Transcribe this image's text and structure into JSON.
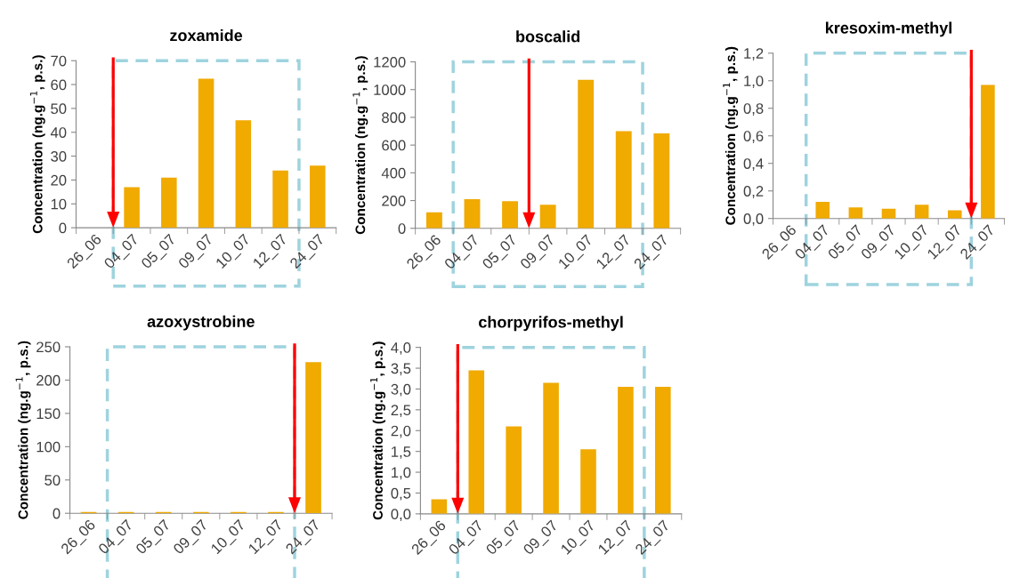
{
  "chart_data": [
    {
      "type": "bar",
      "title": "zoxamide",
      "ylabel": "Concentration (ng.g$^{−1}$, p.s.)",
      "categories": [
        "26_06",
        "04_07",
        "05_07",
        "09_07",
        "10_07",
        "12_07",
        "24_07"
      ],
      "values": [
        null,
        17,
        21,
        62.5,
        45,
        24,
        26
      ],
      "color": "#f0aa00",
      "ylim": [
        0,
        70
      ],
      "yticks": [
        0,
        10,
        20,
        30,
        40,
        50,
        60,
        70
      ],
      "grid": false
    },
    {
      "type": "bar",
      "title": "boscalid",
      "ylabel": "Concentration (ng.g$^{−1}$, p.s.)",
      "categories": [
        "26_06",
        "04_07",
        "05_07",
        "09_07",
        "10_07",
        "12_07",
        "24_07"
      ],
      "values": [
        115,
        210,
        195,
        170,
        1070,
        700,
        685
      ],
      "color": "#f0aa00",
      "ylim": [
        0,
        1200
      ],
      "yticks": [
        0,
        200,
        400,
        600,
        800,
        1000,
        1200
      ],
      "grid": false
    },
    {
      "type": "bar",
      "title": "kresoxim-methyl",
      "ylabel": "Concentration (ng.g$^{−1}$, p.s.)",
      "categories": [
        "26_06",
        "04_07",
        "05_07",
        "09_07",
        "10_07",
        "12_07",
        "24_07"
      ],
      "values": [
        null,
        0.12,
        0.08,
        0.07,
        0.1,
        0.06,
        0.97
      ],
      "color": "#f0aa00",
      "ylim": [
        0,
        1.2
      ],
      "yticks": [
        {
          "value": 0,
          "label": "0,0"
        },
        {
          "value": 0.2,
          "label": "0,2"
        },
        {
          "value": 0.4,
          "label": "0,4"
        },
        {
          "value": 0.6,
          "label": "0,6"
        },
        {
          "value": 0.8,
          "label": "0,8"
        },
        {
          "value": 1.0,
          "label": "1,0"
        },
        {
          "value": 1.2,
          "label": "1,2"
        }
      ],
      "grid": false
    },
    {
      "type": "bar",
      "title": "azoxystrobine",
      "ylabel": "Concentration (ng.g$^{−1}$, p.s.)",
      "categories": [
        "26_06",
        "04_07",
        "05_07",
        "09_07",
        "10_07",
        "12_07",
        "24_07"
      ],
      "values": [
        2,
        2,
        2,
        2,
        2,
        2,
        227
      ],
      "color": "#f0aa00",
      "ylim": [
        0,
        250
      ],
      "yticks": [
        0,
        50,
        100,
        150,
        200,
        250
      ],
      "grid": false
    },
    {
      "type": "bar",
      "title": "chorpyrifos-methyl",
      "ylabel": "Concentration (ng.g$^{−1}$, p.s.)",
      "categories": [
        "26_06",
        "04_07",
        "05_07",
        "09_07",
        "10_07",
        "12_07",
        "24_07"
      ],
      "values": [
        0.35,
        3.45,
        2.1,
        3.15,
        1.55,
        3.05,
        3.05
      ],
      "color": "#f0aa00",
      "ylim": [
        0,
        4.0
      ],
      "yticks": [
        {
          "value": 0,
          "label": "0,0"
        },
        {
          "value": 0.5,
          "label": "0,5"
        },
        {
          "value": 1.0,
          "label": "1,0"
        },
        {
          "value": 1.5,
          "label": "1,5"
        },
        {
          "value": 2.0,
          "label": "2,0"
        },
        {
          "value": 2.5,
          "label": "2,5"
        },
        {
          "value": 3.0,
          "label": "3,0"
        },
        {
          "value": 3.5,
          "label": "3,5"
        },
        {
          "value": 4.0,
          "label": "4,0"
        }
      ],
      "grid": false
    }
  ]
}
